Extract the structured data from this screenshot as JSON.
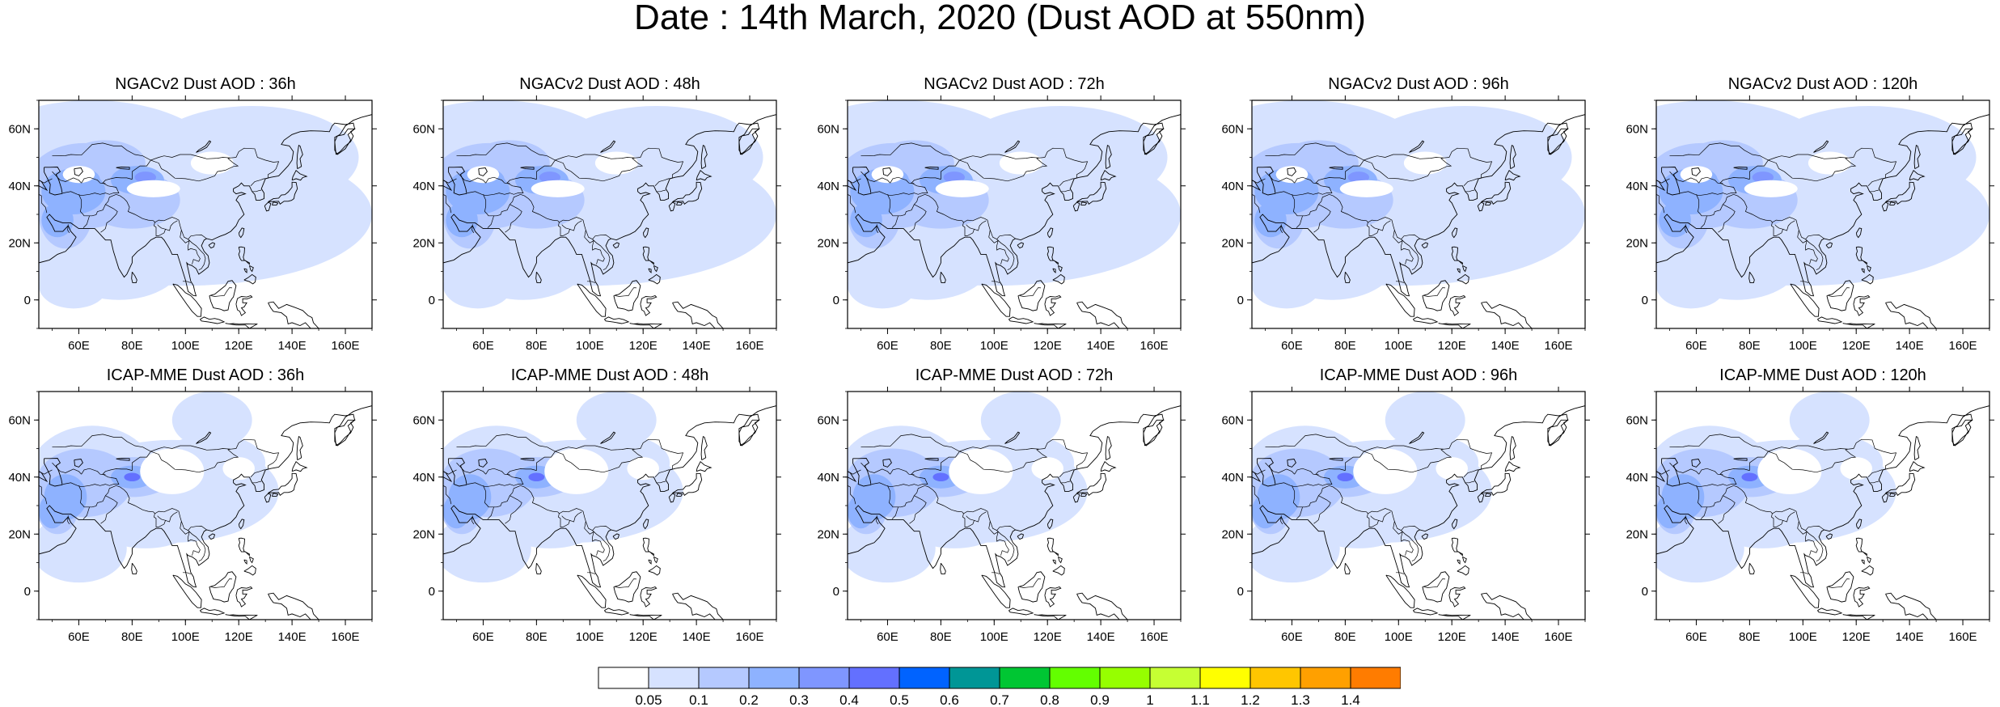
{
  "title": "Date : 14th March, 2020 (Dust AOD at 550nm)",
  "axes": {
    "lat_ticks": [
      "60N",
      "40N",
      "20N",
      "0"
    ],
    "lon_ticks": [
      "60E",
      "80E",
      "100E",
      "120E",
      "140E",
      "160E"
    ]
  },
  "panels": [
    {
      "title": "NGACv2 Dust AOD : 36h",
      "model": "NGACv2",
      "lead": "36h"
    },
    {
      "title": "NGACv2 Dust AOD : 48h",
      "model": "NGACv2",
      "lead": "48h"
    },
    {
      "title": "NGACv2 Dust AOD : 72h",
      "model": "NGACv2",
      "lead": "72h"
    },
    {
      "title": "NGACv2 Dust AOD : 96h",
      "model": "NGACv2",
      "lead": "96h"
    },
    {
      "title": "NGACv2 Dust AOD : 120h",
      "model": "NGACv2",
      "lead": "120h"
    },
    {
      "title": "ICAP-MME Dust AOD : 36h",
      "model": "ICAP-MME",
      "lead": "36h"
    },
    {
      "title": "ICAP-MME Dust AOD : 48h",
      "model": "ICAP-MME",
      "lead": "48h"
    },
    {
      "title": "ICAP-MME Dust AOD : 72h",
      "model": "ICAP-MME",
      "lead": "72h"
    },
    {
      "title": "ICAP-MME Dust AOD : 96h",
      "model": "ICAP-MME",
      "lead": "96h"
    },
    {
      "title": "ICAP-MME Dust AOD : 120h",
      "model": "ICAP-MME",
      "lead": "120h"
    }
  ],
  "colorbar": {
    "labels": [
      "0.05",
      "0.1",
      "0.2",
      "0.3",
      "0.4",
      "0.5",
      "0.6",
      "0.7",
      "0.8",
      "0.9",
      "1",
      "1.1",
      "1.2",
      "1.3",
      "1.4"
    ],
    "colors": [
      "#ffffff",
      "#d6e2ff",
      "#b5c9ff",
      "#8eb2ff",
      "#7f96ff",
      "#6370ff",
      "#0063ff",
      "#009696",
      "#00c633",
      "#63ff00",
      "#96ff00",
      "#c6ff33",
      "#ffff00",
      "#ffc600",
      "#ffa000",
      "#ff7c00",
      "#ff1900"
    ]
  }
}
